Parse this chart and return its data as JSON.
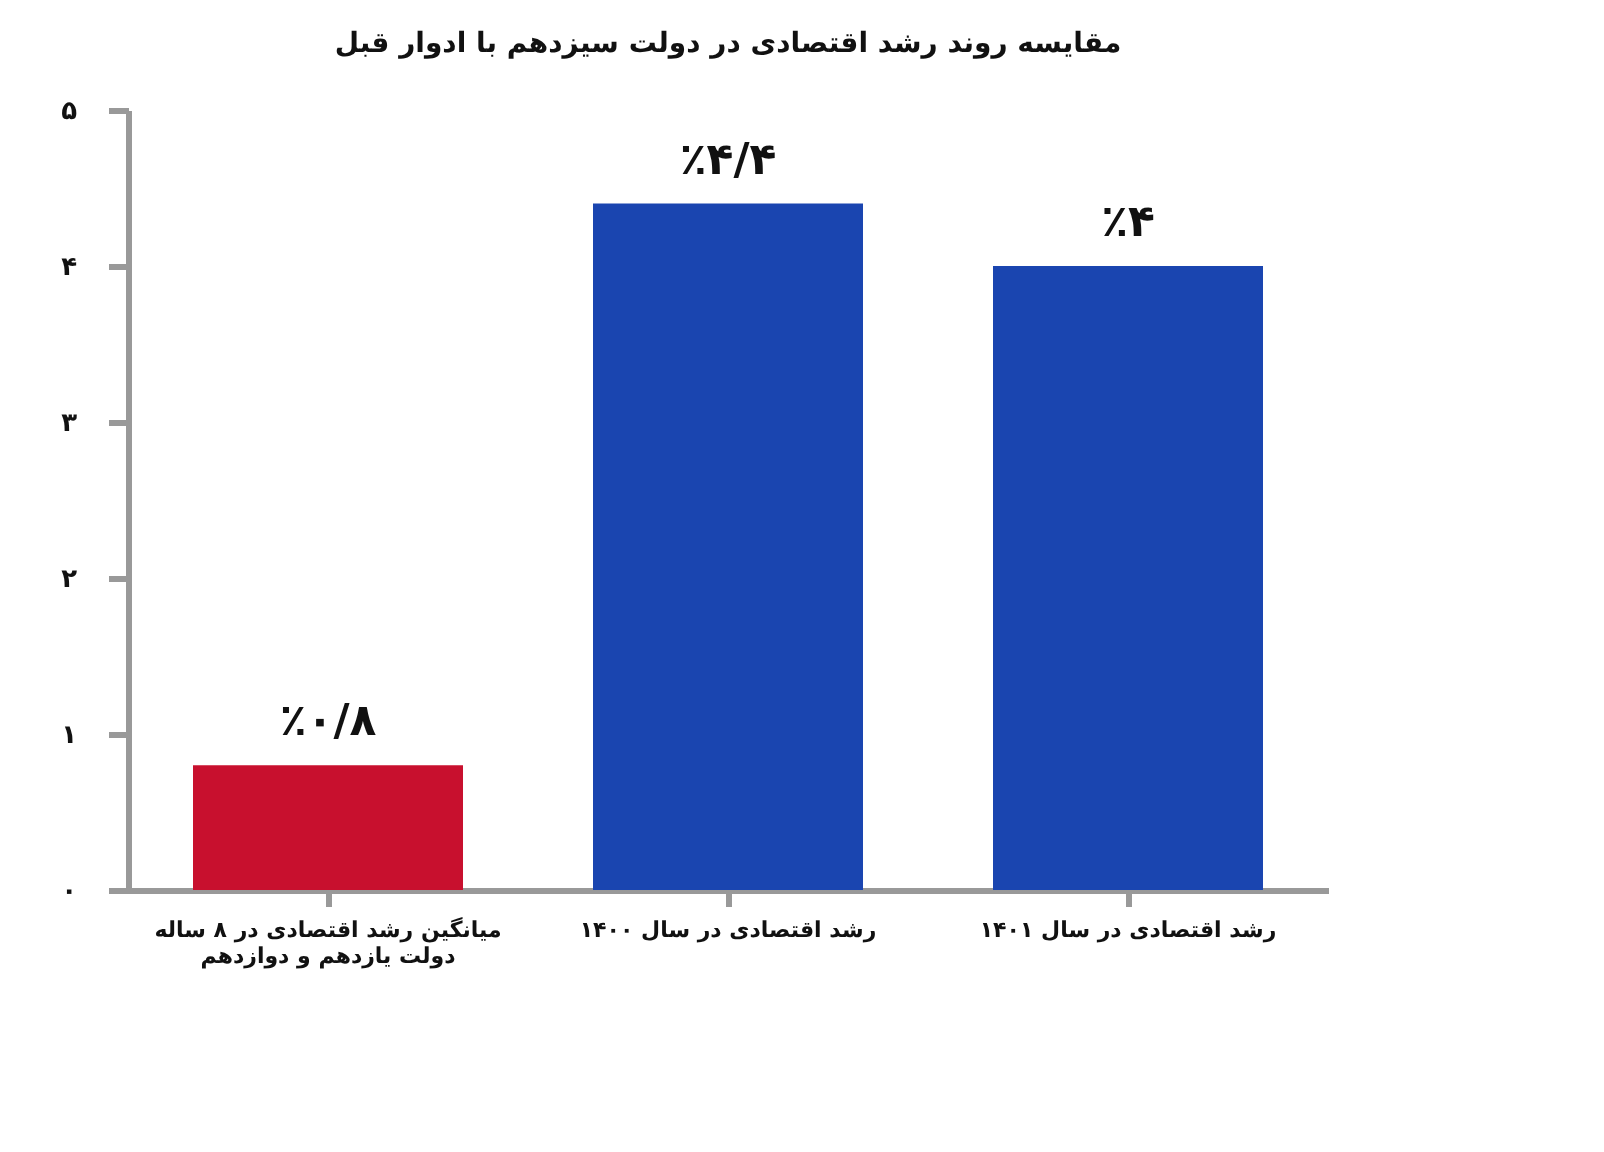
{
  "chart_data": {
    "type": "bar",
    "title": "مقایسه روند رشد اقتصادی در دولت سیزدهم با ادوار قبل",
    "categories": [
      "میانگین رشد اقتصادی در ۸ ساله دولت یازدهم و دوازدهم",
      "رشد اقتصادی در سال ۱۴۰۰",
      "رشد اقتصادی در سال ۱۴۰۱"
    ],
    "values": [
      0.8,
      4.4,
      4.0
    ],
    "colors": [
      "#c8102e",
      "#1a45b0",
      "#1a45b0"
    ],
    "value_labels": [
      "٪۰/۸",
      "٪۴/۴",
      "٪۴"
    ],
    "ylim": [
      0,
      5
    ],
    "yticks": [
      {
        "value": 0,
        "label": "۰"
      },
      {
        "value": 1,
        "label": "۱"
      },
      {
        "value": 2,
        "label": "۲"
      },
      {
        "value": 3,
        "label": "۳"
      },
      {
        "value": 4,
        "label": "۴"
      },
      {
        "value": 5,
        "label": "۵"
      }
    ],
    "grid": false
  }
}
